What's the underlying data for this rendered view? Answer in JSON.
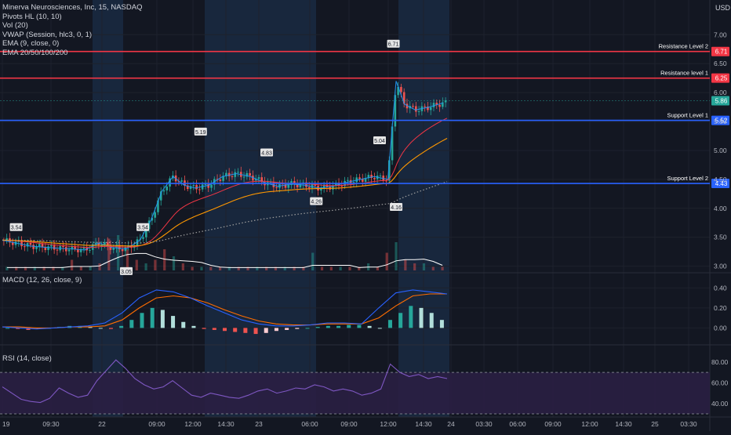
{
  "header": {
    "title": "Minerva Neurosciences, Inc, 15, NASDAQ",
    "indicators": [
      "Pivots HL (10, 10)",
      "Vol (20)",
      "VWAP (Session, hlc3, 0, 1)",
      "EMA (9, close, 0)",
      "EMA 20/50/100/200"
    ],
    "currency": "USD"
  },
  "panes": {
    "macd_label": "MACD (12, 26, close, 9)",
    "rsi_label": "RSI (14, close)"
  },
  "colors": {
    "background": "#131722",
    "grid": "#1e222d",
    "session_shade": "#1d3553",
    "resistance": "#f23645",
    "support": "#2962ff",
    "up": "#26a69a",
    "down": "#ef5350",
    "rsi": "#7e57c2",
    "rsi_band": "#2a1f42",
    "macd_line": "#2962ff",
    "signal_line": "#ff6d00",
    "vwap": "#ff9800",
    "ema9": "#2196f3",
    "ema_slow": "#f23645",
    "ema_200": "#9e9e9e",
    "vol_ma": "#ffffff"
  },
  "chart_data": [
    {
      "type": "line",
      "title": "Minerva Neurosciences, Inc, 15, NASDAQ",
      "x_ticks": [
        "19",
        "09:30",
        "22",
        "09:00",
        "12:00",
        "14:30",
        "23",
        "06:00",
        "09:00",
        "12:00",
        "14:30",
        "24",
        "03:30",
        "06:00",
        "09:00",
        "12:00",
        "14:30",
        "25",
        "03:30"
      ],
      "y_ticks": [
        7.0,
        6.5,
        6.0,
        5.5,
        5.0,
        4.5,
        4.0,
        3.5,
        3.0
      ],
      "ylim": [
        2.9,
        7.6
      ],
      "price_series": {
        "name": "MINERVA close (approx.)",
        "points": [
          [
            0.0,
            3.45
          ],
          [
            0.5,
            3.4
          ],
          [
            1.0,
            3.35
          ],
          [
            1.5,
            3.33
          ],
          [
            2.0,
            3.31
          ],
          [
            2.5,
            3.3
          ],
          [
            3.0,
            3.28
          ],
          [
            3.5,
            3.4
          ],
          [
            4.0,
            3.32
          ],
          [
            4.5,
            3.3
          ],
          [
            5.0,
            3.45
          ],
          [
            5.4,
            3.8
          ],
          [
            5.8,
            4.3
          ],
          [
            6.2,
            4.55
          ],
          [
            6.6,
            4.4
          ],
          [
            7.0,
            4.35
          ],
          [
            7.5,
            4.4
          ],
          [
            8.0,
            4.55
          ],
          [
            8.5,
            4.6
          ],
          [
            9.0,
            4.55
          ],
          [
            9.5,
            4.45
          ],
          [
            10.0,
            4.38
          ],
          [
            10.5,
            4.42
          ],
          [
            11.0,
            4.4
          ],
          [
            11.5,
            4.35
          ],
          [
            12.0,
            4.38
          ],
          [
            12.5,
            4.45
          ],
          [
            13.0,
            4.5
          ],
          [
            13.5,
            4.55
          ],
          [
            14.0,
            4.5
          ],
          [
            14.3,
            6.2
          ],
          [
            14.6,
            5.8
          ],
          [
            15.0,
            5.7
          ],
          [
            15.5,
            5.75
          ],
          [
            16.0,
            5.82
          ]
        ]
      },
      "volume": {
        "name": "Vol (20)",
        "bars": [
          0.1,
          0.1,
          0.1,
          0.1,
          0.1,
          0.1,
          0.1,
          0.3,
          0.1,
          0.1,
          0.2,
          0.9,
          1.0,
          0.6,
          0.3,
          0.2,
          0.3,
          0.6,
          0.4,
          0.2,
          0.1,
          0.1,
          0.1,
          0.1,
          0.1,
          0.1,
          0.1,
          0.1,
          0.1,
          0.1,
          0.1,
          0.1,
          0.1,
          0.5,
          0.1,
          0.1,
          0.1,
          0.1,
          0.1,
          0.2,
          0.1,
          0.5,
          0.8,
          0.3,
          0.2,
          0.2,
          0.1,
          0.1
        ]
      },
      "pivot_labels": [
        {
          "text": "3.54",
          "kind": "high"
        },
        {
          "text": "3.54",
          "kind": "high"
        },
        {
          "text": "3.05",
          "kind": "low"
        },
        {
          "text": "5.19",
          "kind": "high"
        },
        {
          "text": "4.83",
          "kind": "high"
        },
        {
          "text": "4.26",
          "kind": "low"
        },
        {
          "text": "5.04",
          "kind": "high"
        },
        {
          "text": "4.16",
          "kind": "low"
        },
        {
          "text": "6.71",
          "kind": "high"
        }
      ],
      "levels": [
        {
          "label": "Resistance Level 2",
          "value": 6.71,
          "tag": "6.71",
          "kind": "resistance"
        },
        {
          "label": "Resistance level 1",
          "value": 6.25,
          "tag": "6.25",
          "kind": "resistance"
        },
        {
          "label": "Support Level 1",
          "value": 5.52,
          "tag": "5.52",
          "kind": "support"
        },
        {
          "label": "Support Level 2",
          "value": 4.43,
          "tag": "4.43",
          "kind": "support"
        }
      ],
      "last_price": {
        "value": 5.86,
        "tag": "5.86"
      }
    },
    {
      "type": "bar",
      "title": "MACD (12, 26, close, 9)",
      "y_ticks": [
        0.4,
        0.2,
        0.0
      ],
      "ylim": [
        -0.13,
        0.52
      ],
      "histogram": [
        0.0,
        -0.01,
        -0.02,
        -0.01,
        0.0,
        0.01,
        0.02,
        0.02,
        0.01,
        0.0,
        -0.01,
        0.02,
        0.08,
        0.15,
        0.2,
        0.18,
        0.12,
        0.06,
        0.02,
        -0.01,
        -0.02,
        -0.03,
        -0.04,
        -0.05,
        -0.06,
        -0.05,
        -0.03,
        -0.02,
        -0.01,
        0.0,
        0.01,
        0.02,
        0.02,
        0.03,
        0.03,
        0.02,
        0.0,
        0.08,
        0.15,
        0.22,
        0.2,
        0.15,
        0.08
      ],
      "macd_line": [
        0.01,
        0.0,
        -0.01,
        0.0,
        0.01,
        0.02,
        0.05,
        0.15,
        0.3,
        0.38,
        0.36,
        0.3,
        0.22,
        0.15,
        0.08,
        0.04,
        0.02,
        0.02,
        0.03,
        0.05,
        0.05,
        0.04,
        0.2,
        0.35,
        0.38,
        0.36,
        0.34
      ],
      "signal_line": [
        0.01,
        0.01,
        0.0,
        0.0,
        0.01,
        0.01,
        0.02,
        0.08,
        0.2,
        0.3,
        0.32,
        0.3,
        0.25,
        0.18,
        0.12,
        0.07,
        0.04,
        0.03,
        0.03,
        0.04,
        0.04,
        0.04,
        0.1,
        0.22,
        0.32,
        0.34,
        0.34
      ]
    },
    {
      "type": "line",
      "title": "RSI (14, close)",
      "y_ticks": [
        80.0,
        60.0,
        40.0
      ],
      "ylim": [
        27,
        92
      ],
      "band": [
        30,
        70
      ],
      "values": [
        56,
        50,
        44,
        42,
        41,
        45,
        55,
        50,
        46,
        48,
        62,
        72,
        82,
        74,
        64,
        58,
        54,
        56,
        62,
        55,
        48,
        46,
        50,
        48,
        46,
        45,
        48,
        52,
        54,
        50,
        52,
        55,
        54,
        58,
        56,
        52,
        54,
        52,
        48,
        50,
        54,
        78,
        70,
        66,
        68,
        64,
        66,
        64
      ]
    }
  ]
}
